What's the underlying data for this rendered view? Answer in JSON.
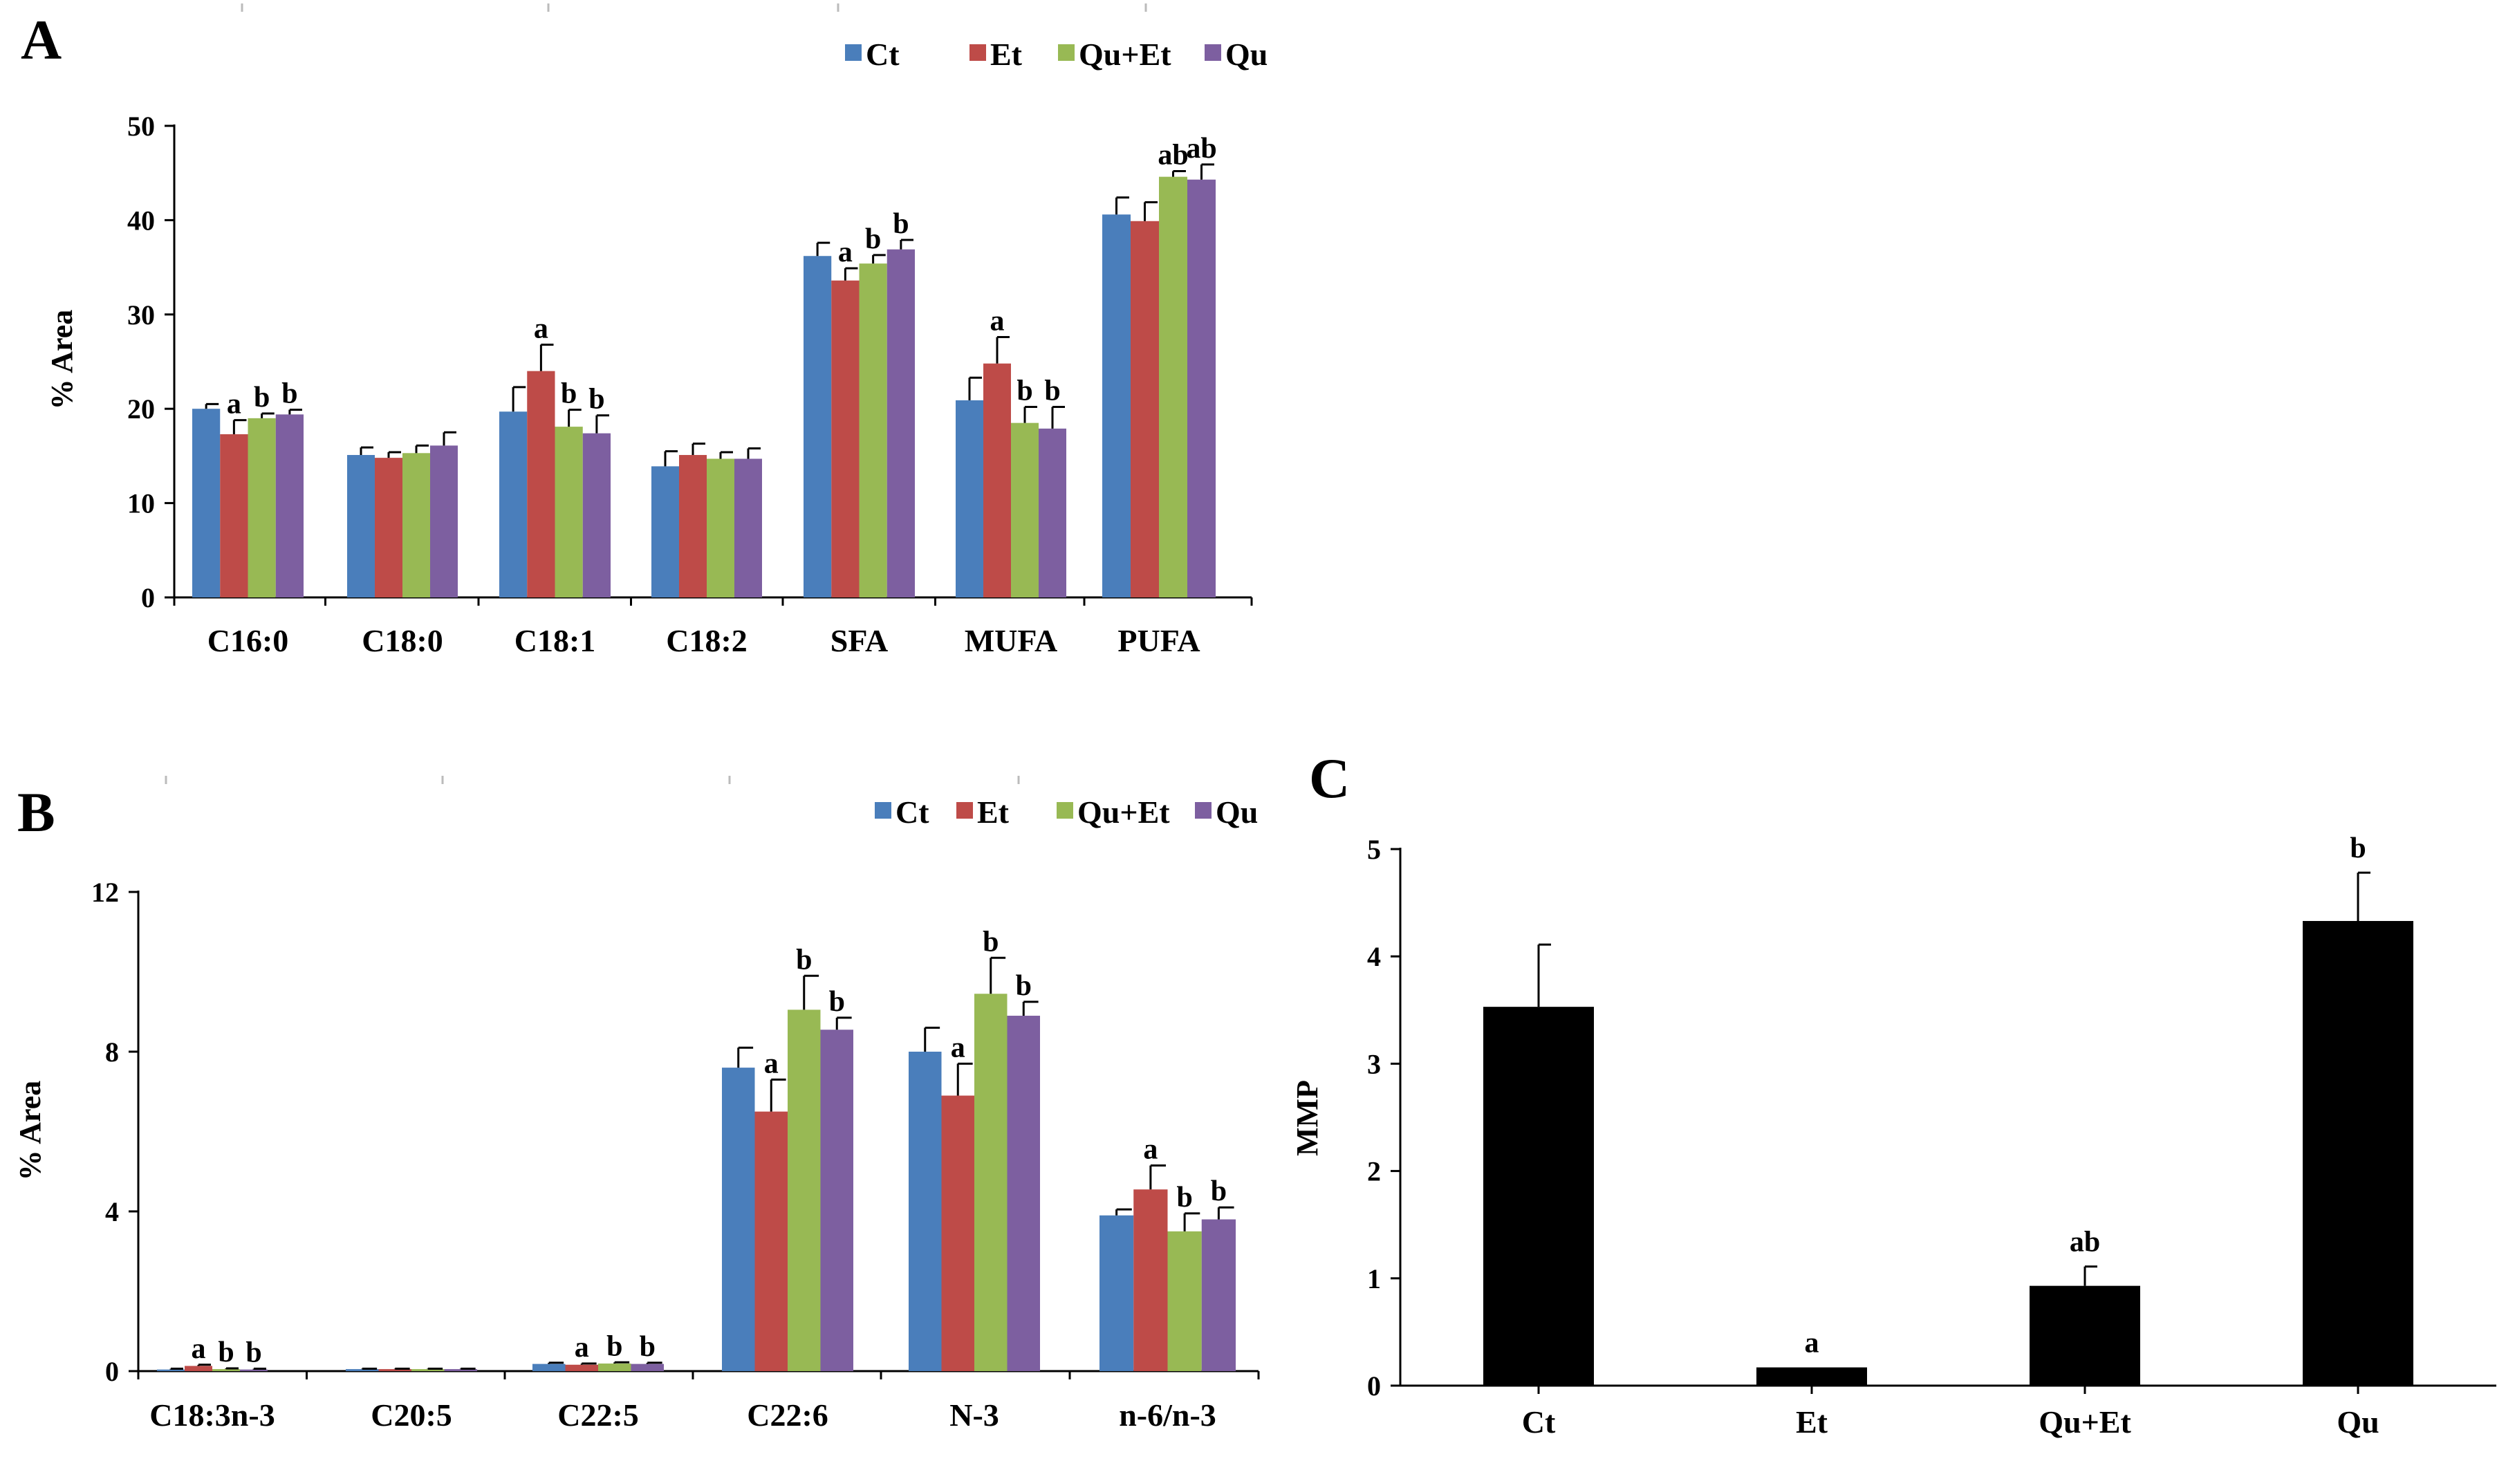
{
  "colors": {
    "Ct": "#4a7ebb",
    "Et": "#be4b48",
    "Qu+Et": "#98b954",
    "Qu": "#7d5fa0",
    "single": "#000000"
  },
  "chart_data": [
    {
      "type": "bar",
      "panel": "A",
      "ylabel": "% Area",
      "ylim": [
        0,
        50
      ],
      "yticks": [
        "0",
        "10",
        "20",
        "30",
        "40",
        "50"
      ],
      "legend_position": "top-right",
      "categories": [
        "C16:0",
        "C18:0",
        "C18:1",
        "C18:2",
        "SFA",
        "MUFA",
        "PUFA"
      ],
      "series": [
        {
          "name": "Ct",
          "values": [
            20.0,
            15.1,
            19.7,
            13.9,
            36.2,
            20.9,
            40.6
          ],
          "errors": [
            0.5,
            0.8,
            2.6,
            1.6,
            1.4,
            2.4,
            1.8
          ],
          "labels": [
            "",
            "",
            "",
            "",
            "",
            "",
            ""
          ]
        },
        {
          "name": "Et",
          "values": [
            17.3,
            14.8,
            24.0,
            15.1,
            33.6,
            24.8,
            39.9
          ],
          "errors": [
            1.5,
            0.6,
            2.8,
            1.2,
            1.3,
            2.8,
            2.0
          ],
          "labels": [
            "a",
            "",
            "a",
            "",
            "a",
            "a",
            ""
          ]
        },
        {
          "name": "Qu+Et",
          "values": [
            19.0,
            15.3,
            18.1,
            14.7,
            35.4,
            18.5,
            44.6
          ],
          "errors": [
            0.5,
            0.8,
            1.8,
            0.7,
            0.9,
            1.7,
            0.6
          ],
          "labels": [
            "b",
            "",
            "b",
            "",
            "b",
            "b",
            "ab"
          ]
        },
        {
          "name": "Qu",
          "values": [
            19.4,
            16.1,
            17.4,
            14.7,
            36.9,
            17.9,
            44.3
          ],
          "errors": [
            0.5,
            1.4,
            1.9,
            1.1,
            1.0,
            2.3,
            1.6
          ],
          "labels": [
            "b",
            "",
            "b",
            "",
            "b",
            "b",
            "ab"
          ]
        }
      ]
    },
    {
      "type": "bar",
      "panel": "B",
      "ylabel": "% Area",
      "ylim": [
        0,
        12
      ],
      "yticks": [
        "0",
        "4",
        "8",
        "12"
      ],
      "legend_position": "top-right",
      "categories": [
        "C18:3n-3",
        "C20:5",
        "C22:5",
        "C22:6",
        "N-3",
        "n-6/n-3"
      ],
      "series": [
        {
          "name": "Ct",
          "values": [
            0.04,
            0.05,
            0.18,
            7.6,
            8.0,
            3.9
          ],
          "errors": [
            0.02,
            0.01,
            0.03,
            0.5,
            0.6,
            0.15
          ],
          "labels": [
            "",
            "",
            "",
            "",
            "",
            ""
          ]
        },
        {
          "name": "Et",
          "values": [
            0.13,
            0.05,
            0.16,
            6.5,
            6.9,
            4.55
          ],
          "errors": [
            0.03,
            0.01,
            0.03,
            0.8,
            0.8,
            0.6
          ],
          "labels": [
            "a",
            "",
            "a",
            "a",
            "a",
            "a"
          ]
        },
        {
          "name": "Qu+Et",
          "values": [
            0.05,
            0.05,
            0.19,
            9.05,
            9.45,
            3.5
          ],
          "errors": [
            0.02,
            0.01,
            0.03,
            0.85,
            0.9,
            0.45
          ],
          "labels": [
            "b",
            "",
            "b",
            "b",
            "b",
            "b"
          ]
        },
        {
          "name": "Qu",
          "values": [
            0.04,
            0.05,
            0.18,
            8.55,
            8.9,
            3.8
          ],
          "errors": [
            0.02,
            0.01,
            0.03,
            0.3,
            0.35,
            0.3
          ],
          "labels": [
            "b",
            "",
            "b",
            "b",
            "b",
            "b"
          ]
        }
      ]
    },
    {
      "type": "bar",
      "panel": "C",
      "ylabel": "MMP",
      "ylim": [
        0,
        5
      ],
      "yticks": [
        "0",
        "1",
        "2",
        "3",
        "4",
        "5"
      ],
      "categories": [
        "Ct",
        "Et",
        "Qu+Et",
        "Qu"
      ],
      "values": [
        3.53,
        0.17,
        0.93,
        4.33
      ],
      "errors": [
        0.58,
        0.0,
        0.18,
        0.45
      ],
      "labels": [
        "",
        "a",
        "ab",
        "b"
      ]
    }
  ]
}
